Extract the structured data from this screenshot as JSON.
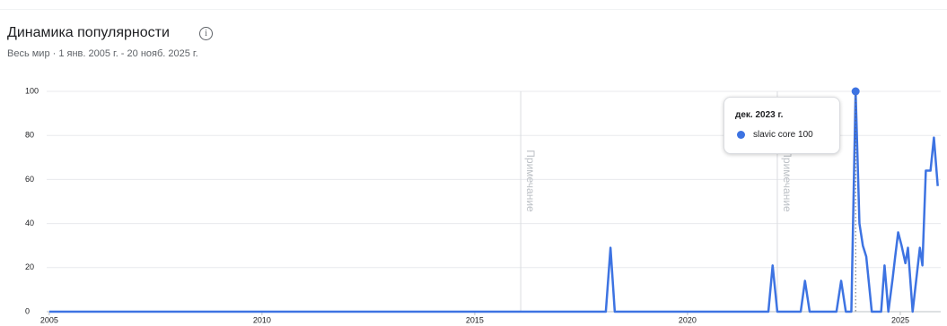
{
  "chart_data": {
    "type": "line",
    "title": "Динамика популярности",
    "subtitle": "Весь мир · 1 янв. 2005 г. - 20 нояб. 2025 г.",
    "tooltip_date": "дек. 2023 г.",
    "x": [
      2005,
      2018.08,
      2018.19,
      2018.29,
      2021.9,
      2022.0,
      2022.11,
      2022.66,
      2022.76,
      2022.87,
      2023.5,
      2023.61,
      2023.72,
      2023.85,
      2023.95,
      2024.04,
      2024.12,
      2024.2,
      2024.33,
      2024.55,
      2024.63,
      2024.72,
      2024.82,
      2024.88,
      2024.95,
      2025.03,
      2025.12,
      2025.18,
      2025.29,
      2025.46,
      2025.52,
      2025.6,
      2025.71,
      2025.79,
      2025.88
    ],
    "series": [
      {
        "name": "slavic core",
        "color": "#3d73e2",
        "values": [
          0,
          0,
          29,
          0,
          0,
          21,
          0,
          0,
          14,
          0,
          0,
          14,
          0,
          0,
          100,
          40,
          30,
          25,
          0,
          0,
          21,
          0,
          15,
          25,
          36,
          30,
          22,
          29,
          0,
          29,
          21,
          64,
          64,
          79,
          57
        ]
      }
    ],
    "highlight_index": 14,
    "annotations": [
      {
        "x": 2016.08,
        "label": "Примечание"
      },
      {
        "x": 2022.11,
        "label": "Примечание"
      }
    ],
    "xlim": [
      2004.94,
      2025.95
    ],
    "xticks": [
      2005,
      2010,
      2015,
      2020,
      2025
    ],
    "ylim": [
      0,
      100
    ],
    "yticks": [
      0,
      20,
      40,
      60,
      80,
      100
    ],
    "grid": true
  }
}
